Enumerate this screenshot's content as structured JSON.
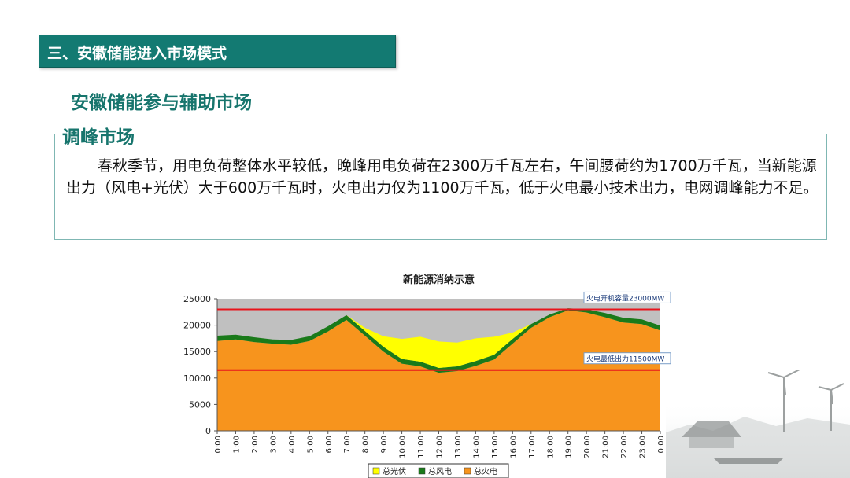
{
  "header": {
    "section_title": "三、安徽储能进入市场模式"
  },
  "subtitle": "安徽储能参与辅助市场",
  "content_box": {
    "title": "调峰市场",
    "paragraph": "春秋季节，用电负荷整体水平较低，晚峰用电负荷在2300万千瓦左右，午间腰荷约为1700万千瓦，当新能源出力（风电+光伏）大于600万千瓦时，火电出力仅为1100万千瓦，低于火电最小技术出力，电网调峰能力不足。"
  },
  "colors": {
    "teal": "#137a72",
    "thermal": "#f7941d",
    "wind": "#1a7a1a",
    "solar": "#ffff00",
    "redline": "#e8141b",
    "plot_bg": "#c0c0c0"
  },
  "chart_data": {
    "type": "area",
    "stacked": true,
    "title": "新能源消纳示意",
    "x": [
      "0:00",
      "1:00",
      "2:00",
      "3:00",
      "4:00",
      "5:00",
      "6:00",
      "7:00",
      "8:00",
      "9:00",
      "10:00",
      "11:00",
      "12:00",
      "13:00",
      "14:00",
      "15:00",
      "16:00",
      "17:00",
      "18:00",
      "19:00",
      "20:00",
      "21:00",
      "22:00",
      "23:00",
      "0:00"
    ],
    "ylim": [
      0,
      25000
    ],
    "yticks": [
      0,
      5000,
      10000,
      15000,
      20000,
      25000
    ],
    "series": [
      {
        "name": "总火电",
        "color": "#f7941d",
        "values": [
          17000,
          17300,
          16800,
          16500,
          16300,
          17000,
          18800,
          21000,
          18000,
          15000,
          12700,
          12200,
          11000,
          11300,
          12300,
          13500,
          16500,
          19500,
          21500,
          22800,
          22400,
          21500,
          20500,
          20200,
          19000
        ]
      },
      {
        "name": "总风电",
        "color": "#1a7a1a",
        "values": [
          1000,
          900,
          900,
          800,
          900,
          900,
          1000,
          900,
          900,
          900,
          900,
          900,
          900,
          900,
          900,
          900,
          900,
          700,
          500,
          400,
          600,
          800,
          900,
          900,
          900
        ]
      },
      {
        "name": "总光伏",
        "color": "#ffff00",
        "values": [
          0,
          0,
          0,
          0,
          0,
          0,
          0,
          0,
          600,
          2000,
          3800,
          4700,
          5000,
          4500,
          4300,
          3400,
          1200,
          0,
          0,
          0,
          0,
          0,
          0,
          0,
          0
        ]
      }
    ],
    "reference_lines": [
      {
        "label": "火电开机容量23000MW",
        "value": 23000,
        "color": "#e8141b"
      },
      {
        "label": "火电最低出力11500MW",
        "value": 11500,
        "color": "#e8141b"
      }
    ]
  }
}
